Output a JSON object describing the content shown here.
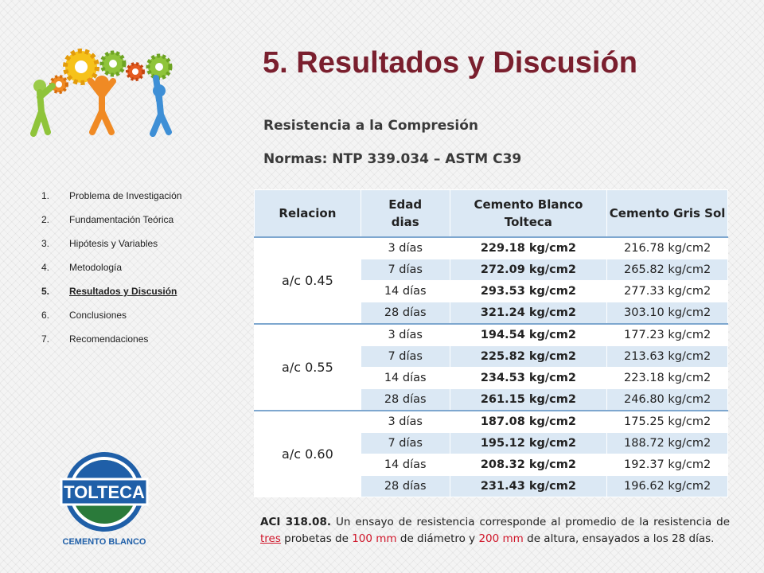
{
  "title": "5. Resultados y Discusión",
  "subtitle1": "Resistencia a la Compresión",
  "subtitle2": "Normas: NTP 339.034 – ASTM C39",
  "nav": {
    "items": [
      {
        "num": "1.",
        "label": "Problema de Investigación",
        "active": false
      },
      {
        "num": "2.",
        "label": "Fundamentación Teórica",
        "active": false
      },
      {
        "num": "3.",
        "label": "Hipótesis y Variables",
        "active": false
      },
      {
        "num": "4.",
        "label": "Metodología",
        "active": false
      },
      {
        "num": "5.",
        "label": "Resultados y Discusión",
        "active": true
      },
      {
        "num": "6.",
        "label": "Conclusiones",
        "active": false
      },
      {
        "num": "7.",
        "label": "Recomendaciones",
        "active": false
      }
    ]
  },
  "table": {
    "headers": {
      "relacion": "Relacion",
      "edad_1": "Edad",
      "edad_2": "dias",
      "blanco_1": "Cemento Blanco",
      "blanco_2": "Tolteca",
      "gris": "Cemento Gris Sol"
    },
    "groups": [
      {
        "relacion": "a/c  0.45",
        "rows": [
          {
            "edad": "3 días",
            "blanco": "229.18 kg/cm2",
            "gris": "216.78 kg/cm2"
          },
          {
            "edad": "7 días",
            "blanco": "272.09 kg/cm2",
            "gris": "265.82 kg/cm2"
          },
          {
            "edad": "14 días",
            "blanco": "293.53 kg/cm2",
            "gris": "277.33 kg/cm2"
          },
          {
            "edad": "28 días",
            "blanco": "321.24 kg/cm2",
            "gris": "303.10 kg/cm2"
          }
        ]
      },
      {
        "relacion": "a/c  0.55",
        "rows": [
          {
            "edad": "3 días",
            "blanco": "194.54 kg/cm2",
            "gris": "177.23 kg/cm2"
          },
          {
            "edad": "7 días",
            "blanco": "225.82 kg/cm2",
            "gris": "213.63 kg/cm2"
          },
          {
            "edad": "14 días",
            "blanco": "234.53 kg/cm2",
            "gris": "223.18 kg/cm2"
          },
          {
            "edad": "28 días",
            "blanco": "261.15 kg/cm2",
            "gris": "246.80 kg/cm2"
          }
        ]
      },
      {
        "relacion": "a/c  0.60",
        "rows": [
          {
            "edad": "3 días",
            "blanco": "187.08 kg/cm2",
            "gris": "175.25 kg/cm2"
          },
          {
            "edad": "7 días",
            "blanco": "195.12 kg/cm2",
            "gris": "188.72 kg/cm2"
          },
          {
            "edad": "14 días",
            "blanco": "208.32 kg/cm2",
            "gris": "192.37 kg/cm2"
          },
          {
            "edad": "28 días",
            "blanco": "231.43 kg/cm2",
            "gris": "196.62 kg/cm2"
          }
        ]
      }
    ]
  },
  "note": {
    "lead": "ACI 318.08.",
    "t1": " Un ensayo de resistencia corresponde al promedio de la resistencia de ",
    "tres": "tres",
    "t2": " probetas de ",
    "diam": "100 mm",
    "t3": " de diámetro y ",
    "alt": "200 mm",
    "t4": " de altura, ensayados a los 28 días."
  },
  "brand": {
    "name": "TOLTECA",
    "tagline": "CEMENTO BLANCO"
  },
  "colors": {
    "title": "#7a1f2e",
    "table_stripe": "#dbe8f4",
    "table_border": "#7ea7cf",
    "highlight": "#d0162a"
  }
}
